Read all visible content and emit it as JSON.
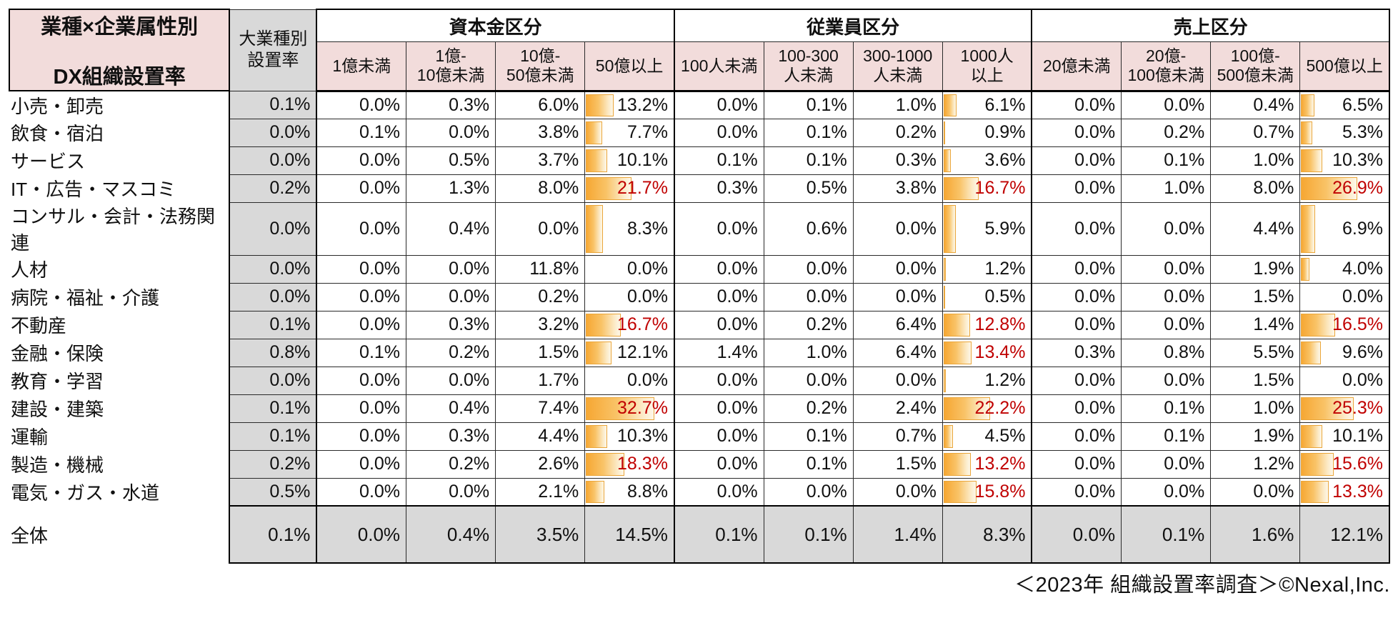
{
  "title": {
    "line1": "業種×企業属性別",
    "line2": "DX組織設置率"
  },
  "footer_note": "＜2023年 組織設置率調査＞©Nexal,Inc.",
  "colors": {
    "header_pink": "#f2dcdb",
    "gray": "#d9d9d9",
    "bar_orange": "#f6a733",
    "highlight_red": "#c00000",
    "border": "#2a2a2a"
  },
  "chart_data": {
    "type": "table",
    "title": "業種×企業属性別 DX組織設置率",
    "unit": "%",
    "overall_column_header": "大業種別\n設置率",
    "groups": [
      {
        "label": "資本金区分",
        "columns": [
          "1億未満",
          "1億-\n10億未満",
          "10億-\n50億未満",
          "50億以上"
        ]
      },
      {
        "label": "従業員区分",
        "columns": [
          "100人未満",
          "100-300\n人未満",
          "300-1000\n人未満",
          "1000人\n以上"
        ]
      },
      {
        "label": "売上区分",
        "columns": [
          "20億未満",
          "20億-\n100億未満",
          "100億-\n500億未満",
          "500億以上"
        ]
      }
    ],
    "bar_note": "gradient data bars appear only in the last column of each group, industry rows only",
    "bar_scale_pct_per_unit": 2.36,
    "rows": [
      {
        "label": "小売・卸売",
        "overall": 0.1,
        "capital": [
          0.0,
          0.3,
          6.0,
          13.2
        ],
        "employee": [
          0.0,
          0.1,
          1.0,
          6.1
        ],
        "sales": [
          0.0,
          0.0,
          0.4,
          6.5
        ],
        "red": [
          false,
          false,
          false
        ]
      },
      {
        "label": "飲食・宿泊",
        "overall": 0.0,
        "capital": [
          0.1,
          0.0,
          3.8,
          7.7
        ],
        "employee": [
          0.0,
          0.1,
          0.2,
          0.9
        ],
        "sales": [
          0.0,
          0.2,
          0.7,
          5.3
        ],
        "red": [
          false,
          false,
          false
        ]
      },
      {
        "label": "サービス",
        "overall": 0.0,
        "capital": [
          0.0,
          0.5,
          3.7,
          10.1
        ],
        "employee": [
          0.1,
          0.1,
          0.3,
          3.6
        ],
        "sales": [
          0.0,
          0.1,
          1.0,
          10.3
        ],
        "red": [
          false,
          false,
          false
        ]
      },
      {
        "label": "IT・広告・マスコミ",
        "overall": 0.2,
        "capital": [
          0.0,
          1.3,
          8.0,
          21.7
        ],
        "employee": [
          0.3,
          0.5,
          3.8,
          16.7
        ],
        "sales": [
          0.0,
          1.0,
          8.0,
          26.9
        ],
        "red": [
          true,
          true,
          true
        ]
      },
      {
        "label": "コンサル・会計・法務関連",
        "overall": 0.0,
        "capital": [
          0.0,
          0.4,
          0.0,
          8.3
        ],
        "employee": [
          0.0,
          0.6,
          0.0,
          5.9
        ],
        "sales": [
          0.0,
          0.0,
          4.4,
          6.9
        ],
        "red": [
          false,
          false,
          false
        ]
      },
      {
        "label": "人材",
        "overall": 0.0,
        "capital": [
          0.0,
          0.0,
          11.8,
          0.0
        ],
        "employee": [
          0.0,
          0.0,
          0.0,
          1.2
        ],
        "sales": [
          0.0,
          0.0,
          1.9,
          4.0
        ],
        "red": [
          false,
          false,
          false
        ]
      },
      {
        "label": "病院・福祉・介護",
        "overall": 0.0,
        "capital": [
          0.0,
          0.0,
          0.2,
          0.0
        ],
        "employee": [
          0.0,
          0.0,
          0.0,
          0.5
        ],
        "sales": [
          0.0,
          0.0,
          1.5,
          0.0
        ],
        "red": [
          false,
          false,
          false
        ]
      },
      {
        "label": "不動産",
        "overall": 0.1,
        "capital": [
          0.0,
          0.3,
          3.2,
          16.7
        ],
        "employee": [
          0.0,
          0.2,
          6.4,
          12.8
        ],
        "sales": [
          0.0,
          0.0,
          1.4,
          16.5
        ],
        "red": [
          true,
          true,
          true
        ]
      },
      {
        "label": "金融・保険",
        "overall": 0.8,
        "capital": [
          0.1,
          0.2,
          1.5,
          12.1
        ],
        "employee": [
          1.4,
          1.0,
          6.4,
          13.4
        ],
        "sales": [
          0.3,
          0.8,
          5.5,
          9.6
        ],
        "red": [
          false,
          true,
          false
        ]
      },
      {
        "label": "教育・学習",
        "overall": 0.0,
        "capital": [
          0.0,
          0.0,
          1.7,
          0.0
        ],
        "employee": [
          0.0,
          0.0,
          0.0,
          1.2
        ],
        "sales": [
          0.0,
          0.0,
          1.5,
          0.0
        ],
        "red": [
          false,
          false,
          false
        ]
      },
      {
        "label": "建設・建築",
        "overall": 0.1,
        "capital": [
          0.0,
          0.4,
          7.4,
          32.7
        ],
        "employee": [
          0.0,
          0.2,
          2.4,
          22.2
        ],
        "sales": [
          0.0,
          0.1,
          1.0,
          25.3
        ],
        "red": [
          true,
          true,
          true
        ]
      },
      {
        "label": "運輸",
        "overall": 0.1,
        "capital": [
          0.0,
          0.3,
          4.4,
          10.3
        ],
        "employee": [
          0.0,
          0.1,
          0.7,
          4.5
        ],
        "sales": [
          0.0,
          0.1,
          1.9,
          10.1
        ],
        "red": [
          false,
          false,
          false
        ]
      },
      {
        "label": "製造・機械",
        "overall": 0.2,
        "capital": [
          0.0,
          0.2,
          2.6,
          18.3
        ],
        "employee": [
          0.0,
          0.1,
          1.5,
          13.2
        ],
        "sales": [
          0.0,
          0.0,
          1.2,
          15.6
        ],
        "red": [
          true,
          true,
          true
        ]
      },
      {
        "label": "電気・ガス・水道",
        "overall": 0.5,
        "capital": [
          0.0,
          0.0,
          2.1,
          8.8
        ],
        "employee": [
          0.0,
          0.0,
          0.0,
          15.8
        ],
        "sales": [
          0.0,
          0.0,
          0.0,
          13.3
        ],
        "red": [
          false,
          true,
          true
        ]
      }
    ],
    "total_row": {
      "label": "全体",
      "overall": 0.1,
      "capital": [
        0.0,
        0.4,
        3.5,
        14.5
      ],
      "employee": [
        0.1,
        0.1,
        1.4,
        8.3
      ],
      "sales": [
        0.0,
        0.1,
        1.6,
        12.1
      ],
      "red": [
        false,
        false,
        false
      ]
    }
  }
}
